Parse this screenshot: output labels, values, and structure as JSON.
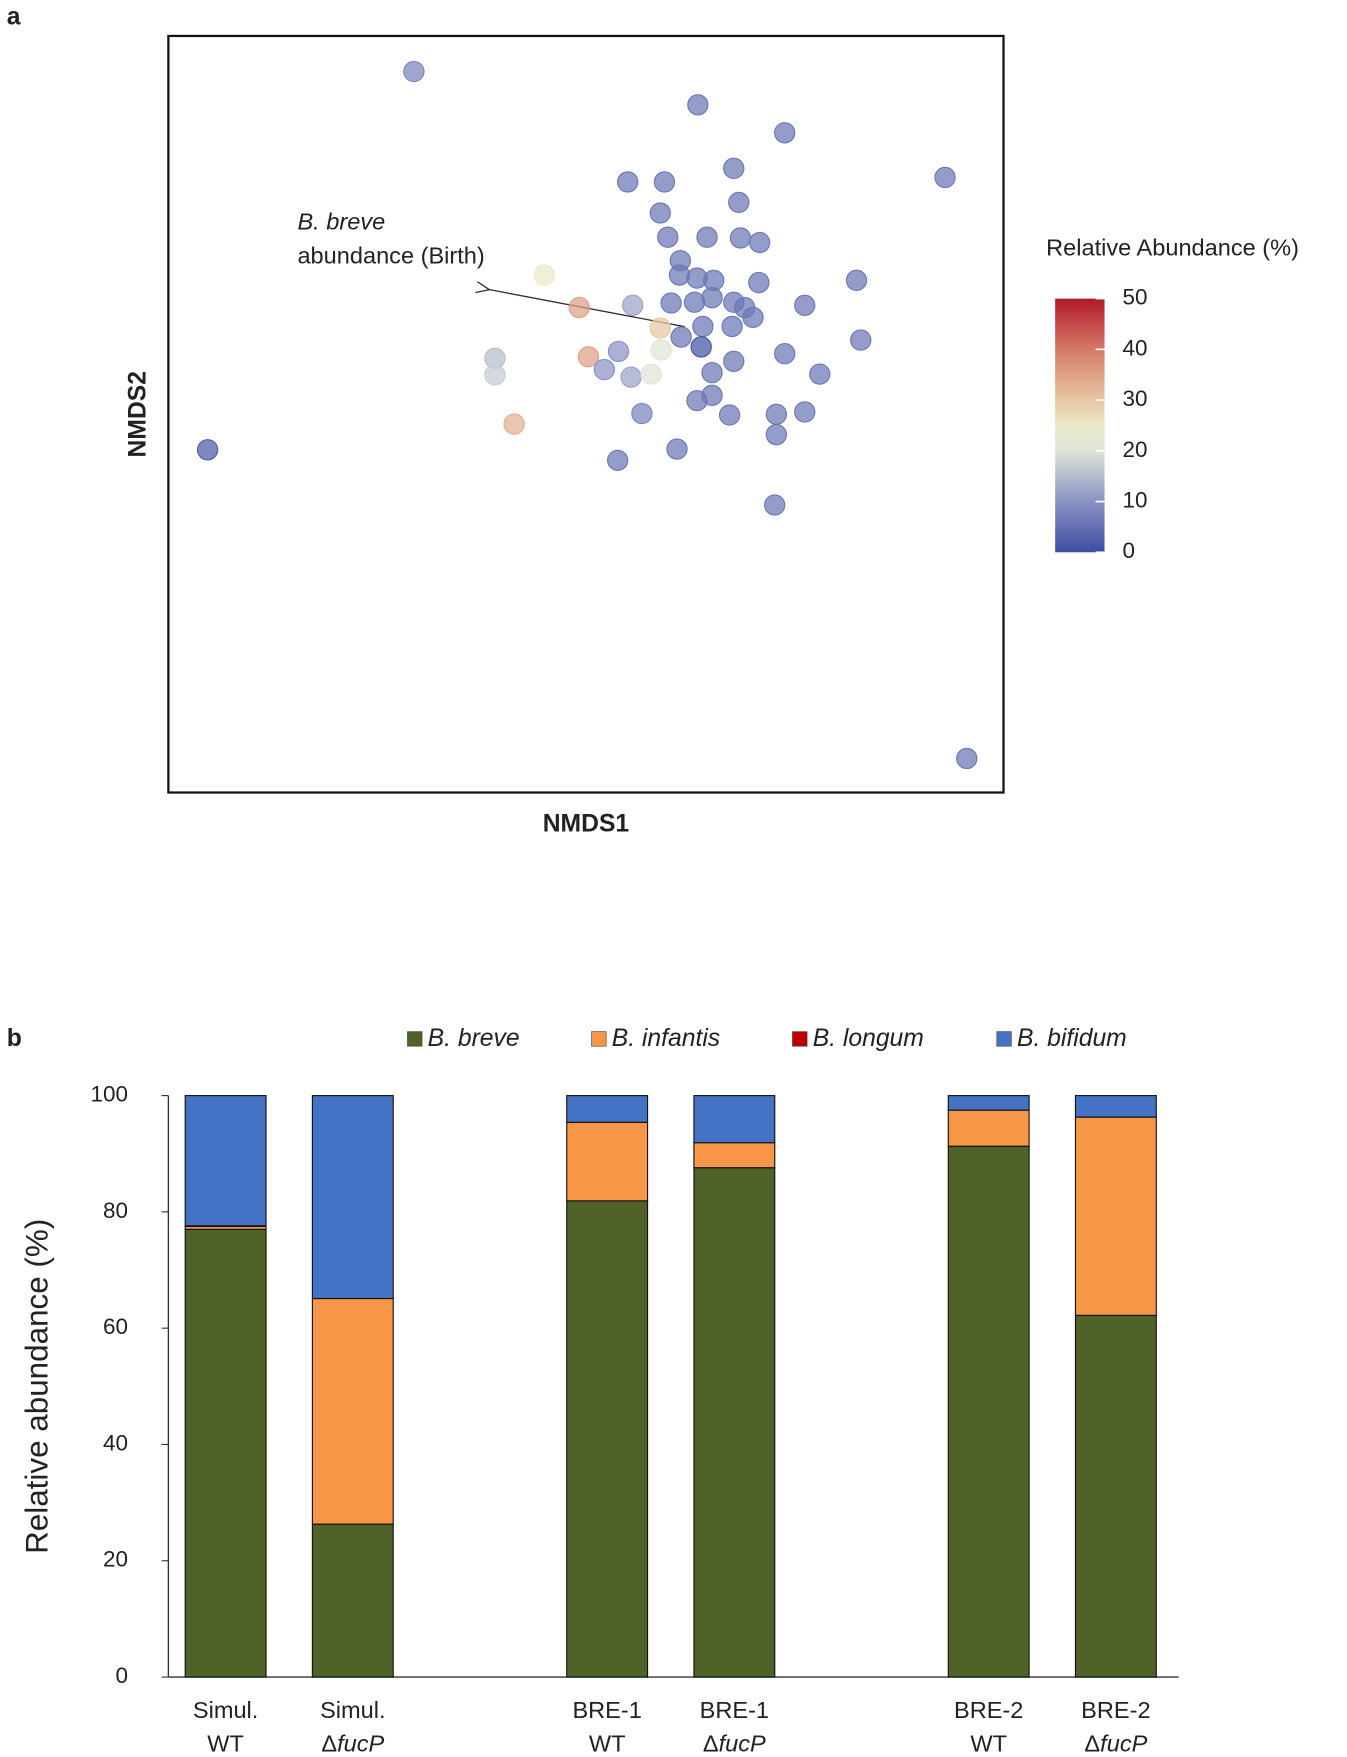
{
  "chart_data": [
    {
      "type": "scatter",
      "panel": "a",
      "xlabel": "NMDS1",
      "ylabel": "NMDS2",
      "xlim": [
        0,
        100
      ],
      "ylim": [
        0,
        100
      ],
      "x": [
        29.4,
        63.4,
        73.8,
        55.0,
        59.4,
        67.7,
        93.0,
        68.3,
        58.9,
        59.8,
        64.5,
        68.5,
        70.8,
        61.3,
        61.2,
        63.3,
        65.3,
        70.7,
        82.4,
        45.0,
        49.2,
        55.6,
        60.2,
        63.0,
        65.1,
        67.7,
        69.0,
        76.2,
        58.9,
        61.4,
        64.0,
        67.5,
        70.0,
        63.8,
        59.0,
        53.9,
        50.3,
        39.1,
        39.1,
        52.2,
        55.4,
        57.8,
        65.1,
        67.7,
        73.8,
        82.9,
        78.0,
        65.1,
        63.3,
        56.7,
        67.2,
        72.8,
        76.2,
        41.4,
        72.8,
        60.9,
        53.8,
        4.7,
        72.6,
        95.6
      ],
      "y": [
        95.3,
        90.9,
        87.2,
        80.7,
        80.7,
        82.5,
        81.3,
        78.0,
        76.6,
        73.4,
        73.4,
        73.3,
        72.7,
        70.3,
        68.4,
        68.0,
        67.7,
        67.4,
        67.7,
        68.4,
        64.1,
        64.4,
        64.7,
        64.8,
        65.4,
        64.8,
        64.1,
        64.4,
        61.4,
        60.2,
        61.6,
        61.6,
        62.8,
        58.9,
        58.5,
        58.3,
        57.6,
        57.4,
        55.2,
        55.9,
        54.9,
        55.3,
        55.5,
        57.0,
        58.0,
        59.8,
        55.3,
        52.5,
        51.8,
        50.1,
        49.9,
        50.0,
        50.3,
        48.7,
        47.3,
        45.4,
        43.9,
        45.3,
        38.0,
        4.5
      ],
      "color_values": [
        8,
        6,
        6,
        6,
        6,
        6,
        6,
        6,
        6,
        6,
        6,
        6,
        6,
        6,
        6,
        6,
        6,
        6,
        6,
        25,
        35,
        12,
        6,
        6,
        6,
        6,
        6,
        6,
        30,
        6,
        6,
        6,
        6,
        1,
        20,
        10,
        35,
        15,
        17,
        10,
        12,
        20,
        6,
        6,
        6,
        6,
        6,
        6,
        6,
        8,
        6,
        6,
        6,
        33,
        6,
        6,
        6,
        2,
        6,
        6
      ],
      "colorbar": {
        "title": "Relative Abundance (%)",
        "lim": [
          0,
          50
        ],
        "ticks": [
          0,
          10,
          20,
          30,
          40,
          50
        ],
        "scale": [
          [
            0,
            "#3c4ea0"
          ],
          [
            10,
            "#8a92c4"
          ],
          [
            20,
            "#dfe5d8"
          ],
          [
            25,
            "#ece9c8"
          ],
          [
            30,
            "#e8c6a4"
          ],
          [
            40,
            "#d47a66"
          ],
          [
            50,
            "#b2182b"
          ]
        ]
      },
      "annotation": [
        "B. breve",
        "abundance (Birth)"
      ]
    },
    {
      "type": "bar",
      "panel": "b",
      "stacked": true,
      "ylabel": "Relative abundance (%)",
      "ylim": [
        0,
        100
      ],
      "yticks": [
        0,
        20,
        40,
        60,
        80,
        100
      ],
      "legend": "top",
      "categories": [
        [
          "Simul.",
          "WT"
        ],
        [
          "Simul.",
          "ΔfucP"
        ],
        [
          "BRE-1",
          "WT"
        ],
        [
          "BRE-1",
          "ΔfucP"
        ],
        [
          "BRE-2",
          "WT"
        ],
        [
          "BRE-2",
          "ΔfucP"
        ]
      ],
      "series": [
        {
          "name": "B. breve",
          "color": "#4f6228",
          "values": [
            77,
            26.3,
            81.9,
            87.6,
            91.3,
            62.2
          ]
        },
        {
          "name": "B. infantis",
          "color": "#f79646",
          "values": [
            0.5,
            38.8,
            13.5,
            4.3,
            6.2,
            34.1
          ]
        },
        {
          "name": "B. longum",
          "color": "#c00000",
          "values": [
            0.1,
            0,
            0,
            0,
            0,
            0
          ]
        },
        {
          "name": "B. bifidum",
          "color": "#4472c4",
          "values": [
            22.4,
            34.9,
            4.6,
            8.1,
            2.5,
            3.7
          ]
        }
      ]
    }
  ]
}
